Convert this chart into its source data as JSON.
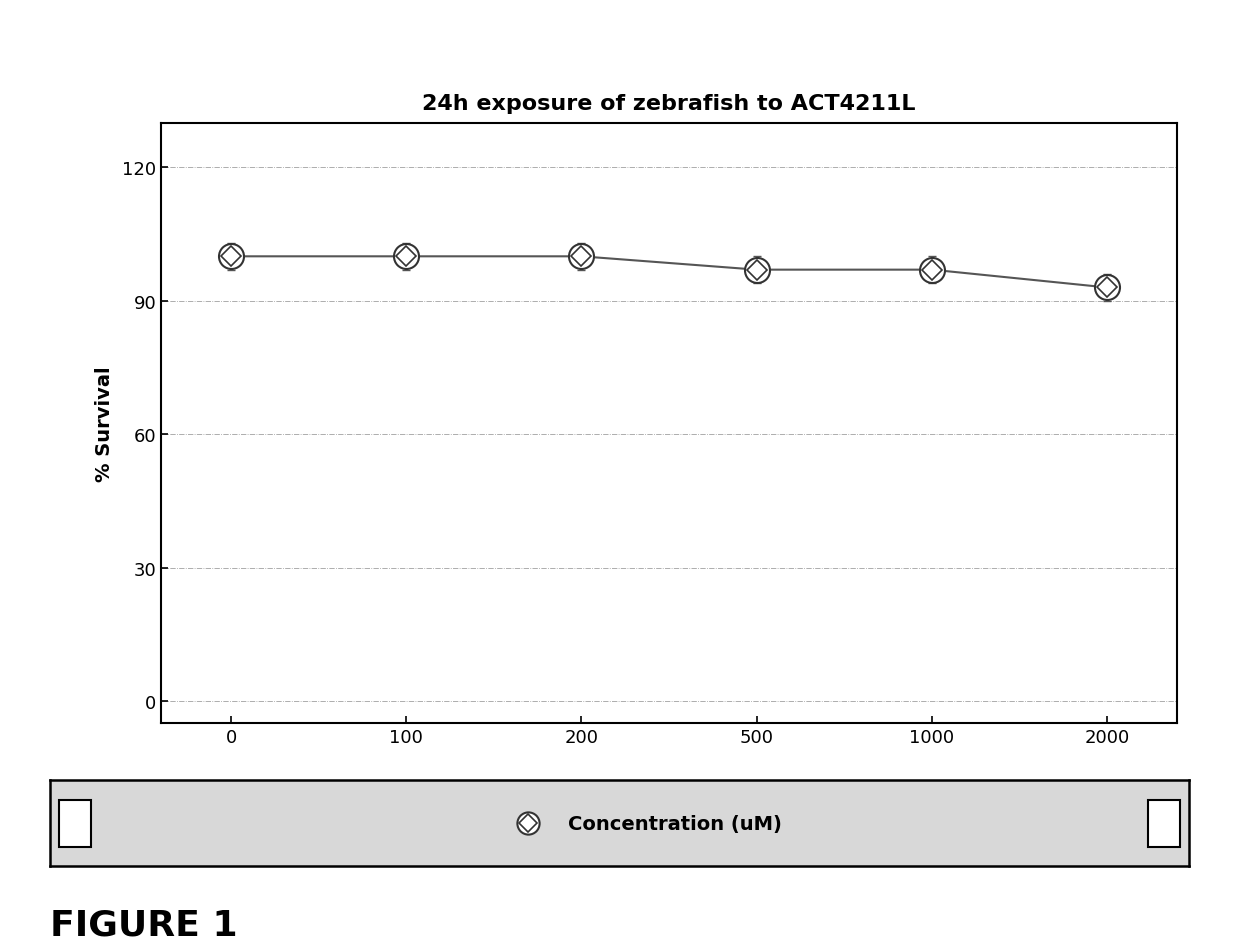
{
  "title": "24h exposure of zebrafish to ACT4211L",
  "xlabel": "Concentration (uM)",
  "ylabel": "% Survival",
  "x_positions": [
    0,
    1,
    2,
    3,
    4,
    5
  ],
  "x_labels": [
    "0",
    "100",
    "200",
    "500",
    "1000",
    "2000"
  ],
  "y_values": [
    100,
    100,
    100,
    97,
    97,
    93
  ],
  "error_values": [
    3,
    3,
    3,
    3,
    3,
    3
  ],
  "yticks": [
    0,
    30,
    60,
    90,
    120
  ],
  "ylim": [
    -5,
    130
  ],
  "line_color": "#555555",
  "grid_color": "#888888",
  "background_color": "#ffffff",
  "figure_caption": "FIGURE 1",
  "legend_text": "Concentration (uM)",
  "title_fontsize": 16,
  "axis_fontsize": 13,
  "ylabel_fontsize": 14,
  "caption_fontsize": 26
}
